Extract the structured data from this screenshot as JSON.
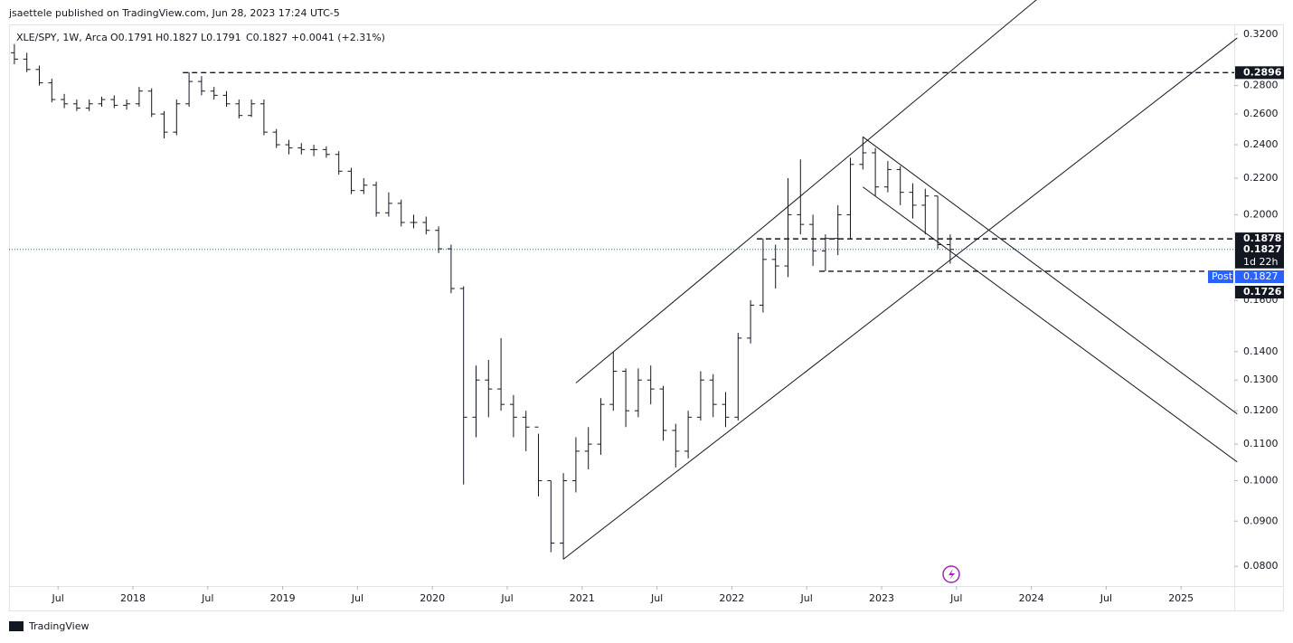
{
  "published": "jsaettele published on TradingView.com, Jun 28, 2023 17:24 UTC-5",
  "footer": "TradingView",
  "chart_data": {
    "type": "ohlc",
    "header": {
      "symbol": "XLE/SPY, 1W, Arca",
      "open": "O0.1791",
      "high": "H0.1827",
      "low": "L0.1791",
      "close": "C0.1827",
      "change": "+0.0041 (+2.31%)"
    },
    "x": [
      "2017-03",
      "2017-04",
      "2017-05",
      "2017-06",
      "2017-07",
      "2017-08",
      "2017-09",
      "2017-10",
      "2017-11",
      "2017-12",
      "2018-01",
      "2018-02",
      "2018-03",
      "2018-04",
      "2018-05",
      "2018-06",
      "2018-07",
      "2018-08",
      "2018-09",
      "2018-10",
      "2018-11",
      "2018-12",
      "2019-01",
      "2019-02",
      "2019-03",
      "2019-04",
      "2019-05",
      "2019-06",
      "2019-07",
      "2019-08",
      "2019-09",
      "2019-10",
      "2019-11",
      "2019-12",
      "2020-01",
      "2020-02",
      "2020-03",
      "2020-04",
      "2020-05",
      "2020-06",
      "2020-07",
      "2020-08",
      "2020-09",
      "2020-10",
      "2020-11",
      "2020-12",
      "2021-01",
      "2021-02",
      "2021-03",
      "2021-04",
      "2021-05",
      "2021-06",
      "2021-07",
      "2021-08",
      "2021-09",
      "2021-10",
      "2021-11",
      "2021-12",
      "2022-01",
      "2022-02",
      "2022-03",
      "2022-04",
      "2022-05",
      "2022-06",
      "2022-07",
      "2022-08",
      "2022-09",
      "2022-10",
      "2022-11",
      "2022-12",
      "2023-01",
      "2023-02",
      "2023-03",
      "2023-04",
      "2023-05",
      "2023-06"
    ],
    "open": [
      0.305,
      0.3,
      0.292,
      0.282,
      0.27,
      0.267,
      0.264,
      0.267,
      0.27,
      0.266,
      0.267,
      0.276,
      0.26,
      0.248,
      0.267,
      0.283,
      0.276,
      0.273,
      0.267,
      0.259,
      0.267,
      0.248,
      0.24,
      0.238,
      0.237,
      0.237,
      0.234,
      0.224,
      0.213,
      0.216,
      0.201,
      0.206,
      0.196,
      0.196,
      0.192,
      0.183,
      0.165,
      0.118,
      0.13,
      0.127,
      0.122,
      0.118,
      0.115,
      0.1,
      0.085,
      0.1,
      0.108,
      0.11,
      0.122,
      0.133,
      0.12,
      0.13,
      0.127,
      0.114,
      0.108,
      0.118,
      0.13,
      0.122,
      0.118,
      0.145,
      0.158,
      0.178,
      0.175,
      0.2,
      0.195,
      0.182,
      0.188,
      0.2,
      0.228,
      0.235,
      0.215,
      0.225,
      0.212,
      0.205,
      0.21,
      0.185
    ],
    "high": [
      0.312,
      0.305,
      0.295,
      0.285,
      0.274,
      0.27,
      0.27,
      0.272,
      0.273,
      0.27,
      0.279,
      0.278,
      0.262,
      0.27,
      0.29,
      0.287,
      0.279,
      0.276,
      0.27,
      0.27,
      0.27,
      0.25,
      0.243,
      0.241,
      0.24,
      0.239,
      0.236,
      0.226,
      0.22,
      0.218,
      0.212,
      0.208,
      0.2,
      0.199,
      0.194,
      0.185,
      0.166,
      0.135,
      0.137,
      0.145,
      0.125,
      0.12,
      0.113,
      0.1,
      0.102,
      0.112,
      0.115,
      0.124,
      0.14,
      0.134,
      0.134,
      0.135,
      0.128,
      0.116,
      0.12,
      0.133,
      0.132,
      0.126,
      0.147,
      0.16,
      0.188,
      0.185,
      0.22,
      0.231,
      0.2,
      0.19,
      0.205,
      0.232,
      0.245,
      0.238,
      0.23,
      0.227,
      0.217,
      0.214,
      0.21,
      0.19
    ],
    "low": [
      0.296,
      0.29,
      0.28,
      0.268,
      0.264,
      0.262,
      0.262,
      0.265,
      0.264,
      0.263,
      0.265,
      0.258,
      0.244,
      0.246,
      0.265,
      0.273,
      0.27,
      0.265,
      0.257,
      0.258,
      0.246,
      0.238,
      0.234,
      0.234,
      0.233,
      0.232,
      0.222,
      0.211,
      0.211,
      0.199,
      0.199,
      0.194,
      0.193,
      0.19,
      0.181,
      0.163,
      0.099,
      0.112,
      0.118,
      0.12,
      0.112,
      0.108,
      0.096,
      0.083,
      0.0815,
      0.097,
      0.103,
      0.107,
      0.12,
      0.115,
      0.118,
      0.122,
      0.111,
      0.1035,
      0.106,
      0.117,
      0.118,
      0.115,
      0.117,
      0.143,
      0.155,
      0.165,
      0.17,
      0.19,
      0.175,
      0.1726,
      0.18,
      0.188,
      0.225,
      0.21,
      0.212,
      0.205,
      0.198,
      0.19,
      0.183,
      0.176
    ],
    "close": [
      0.3,
      0.292,
      0.282,
      0.27,
      0.267,
      0.264,
      0.267,
      0.27,
      0.266,
      0.267,
      0.276,
      0.26,
      0.248,
      0.267,
      0.283,
      0.276,
      0.273,
      0.267,
      0.259,
      0.267,
      0.248,
      0.24,
      0.238,
      0.237,
      0.237,
      0.234,
      0.224,
      0.213,
      0.216,
      0.201,
      0.206,
      0.196,
      0.196,
      0.192,
      0.183,
      0.165,
      0.118,
      0.13,
      0.127,
      0.122,
      0.118,
      0.115,
      0.1,
      0.085,
      0.1,
      0.108,
      0.11,
      0.122,
      0.133,
      0.12,
      0.13,
      0.127,
      0.114,
      0.108,
      0.118,
      0.13,
      0.122,
      0.118,
      0.145,
      0.158,
      0.178,
      0.175,
      0.2,
      0.195,
      0.182,
      0.188,
      0.2,
      0.228,
      0.235,
      0.215,
      0.225,
      0.212,
      0.205,
      0.21,
      0.185,
      0.1827
    ],
    "color": "#131722",
    "log_y": true,
    "grid": false,
    "ylim": [
      0.076,
      0.3276
    ],
    "yticks": [
      {
        "value": 0.08,
        "label": "0.0800"
      },
      {
        "value": 0.09,
        "label": "0.0900"
      },
      {
        "value": 0.1,
        "label": "0.1000"
      },
      {
        "value": 0.11,
        "label": "0.1100"
      },
      {
        "value": 0.12,
        "label": "0.1200"
      },
      {
        "value": 0.13,
        "label": "0.1300"
      },
      {
        "value": 0.14,
        "label": "0.1400"
      },
      {
        "value": 0.16,
        "label": "0.1600"
      },
      {
        "value": 0.2,
        "label": "0.2000"
      },
      {
        "value": 0.22,
        "label": "0.2200"
      },
      {
        "value": 0.24,
        "label": "0.2400"
      },
      {
        "value": 0.26,
        "label": "0.2600"
      },
      {
        "value": 0.28,
        "label": "0.2800"
      },
      {
        "value": 0.32,
        "label": "0.3200"
      }
    ],
    "xticks": [
      {
        "value": "2017-07",
        "label": "Jul"
      },
      {
        "value": "2018-01",
        "label": "2018"
      },
      {
        "value": "2018-07",
        "label": "Jul"
      },
      {
        "value": "2019-01",
        "label": "2019"
      },
      {
        "value": "2019-07",
        "label": "Jul"
      },
      {
        "value": "2020-01",
        "label": "2020"
      },
      {
        "value": "2020-07",
        "label": "Jul"
      },
      {
        "value": "2021-01",
        "label": "2021"
      },
      {
        "value": "2021-07",
        "label": "Jul"
      },
      {
        "value": "2022-01",
        "label": "2022"
      },
      {
        "value": "2022-07",
        "label": "Jul"
      },
      {
        "value": "2023-01",
        "label": "2023"
      },
      {
        "value": "2023-07",
        "label": "Jul"
      },
      {
        "value": "2024-01",
        "label": "2024"
      },
      {
        "value": "2024-07",
        "label": "Jul"
      },
      {
        "value": "2025-01",
        "label": "2025"
      }
    ],
    "levels": [
      {
        "value": 0.2896,
        "label": "0.2896",
        "from": "2018-05"
      },
      {
        "value": 0.1878,
        "label": "0.1878",
        "from": "2022-03"
      },
      {
        "value": 0.1726,
        "label": "0.1726",
        "from": "2022-08"
      }
    ],
    "trendlines": [
      {
        "x": [
          "2020-12",
          "2024-01"
        ],
        "y": [
          0.129,
          0.351
        ]
      },
      {
        "x": [
          "2020-11",
          "2025-05"
        ],
        "y": [
          0.0815,
          0.317
        ]
      },
      {
        "x": [
          "2022-11",
          "2025-05"
        ],
        "y": [
          0.245,
          0.119
        ]
      },
      {
        "x": [
          "2022-11",
          "2025-05"
        ],
        "y": [
          0.215,
          0.105
        ]
      }
    ],
    "last": {
      "value": 0.1827,
      "label": "0.1827",
      "countdown": "1d 22h"
    },
    "post": {
      "name": "Post",
      "value": 0.1827,
      "label": "0.1827"
    }
  }
}
